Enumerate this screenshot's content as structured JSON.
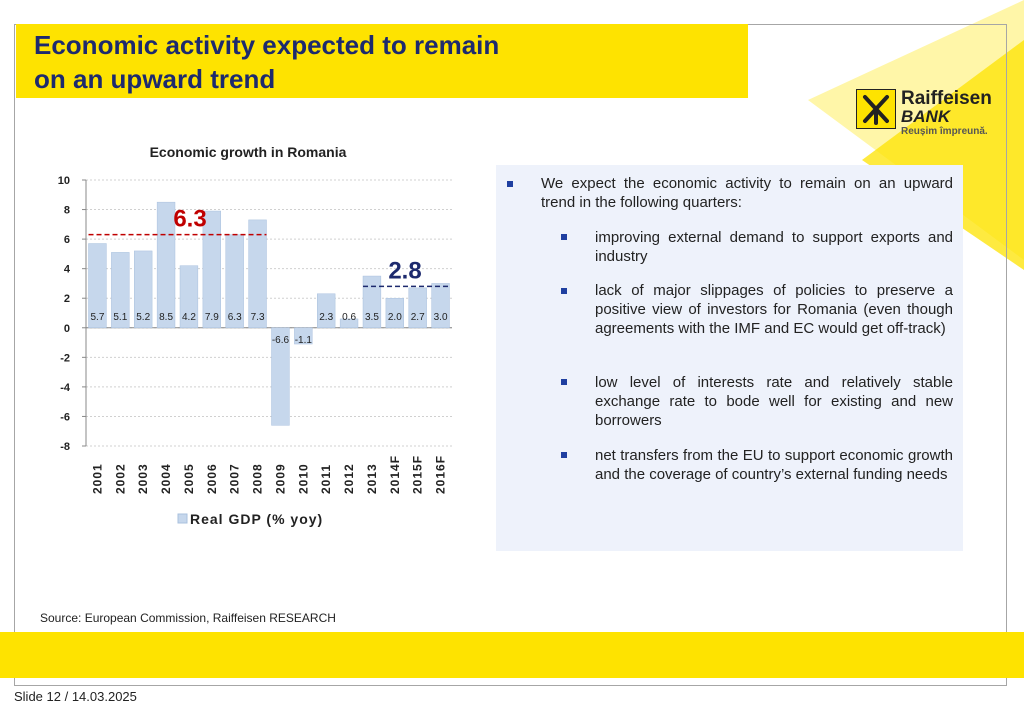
{
  "slide": {
    "title_line1": "Economic activity expected to remain",
    "title_line2": "on an upward trend",
    "source": "Source: European Commission, Raiffeisen RESEARCH",
    "footer": "Slide 12 / 14.03.2025"
  },
  "logo": {
    "name": "Raiffeisen",
    "bank": "BANK",
    "tagline": "Reușim împreună."
  },
  "colors": {
    "yellow": "#fee300",
    "title_blue": "#1d2a6e",
    "bar_fill": "#c6d7ec",
    "bar_stroke": "#a9c0de",
    "highlight_red": "#c00000",
    "highlight_blue": "#1d2a6e",
    "panel_bg": "#eef2fb"
  },
  "chart_data": {
    "type": "bar",
    "title": "Economic growth in Romania",
    "categories": [
      "2001",
      "2002",
      "2003",
      "2004",
      "2005",
      "2006",
      "2007",
      "2008",
      "2009",
      "2010",
      "2011",
      "2012",
      "2013",
      "2014F",
      "2015F",
      "2016F"
    ],
    "series": [
      {
        "name": "Real GDP (% yoy)",
        "values": [
          5.7,
          5.1,
          5.2,
          8.5,
          4.2,
          7.9,
          6.3,
          7.3,
          -6.6,
          -1.1,
          2.3,
          0.6,
          3.5,
          2.0,
          2.7,
          3.0
        ]
      }
    ],
    "data_labels": [
      "5.7",
      "5.1",
      "5.2",
      "8.5",
      "4.2",
      "7.9",
      "6.3",
      "7.3",
      "-6.6",
      "-1.1",
      "2.3",
      "0.6",
      "3.5",
      "2.0",
      "2.7",
      "3.0"
    ],
    "ylim": [
      -8,
      10
    ],
    "yticks": [
      10,
      8,
      6,
      4,
      2,
      0,
      -2,
      -4,
      -6,
      -8
    ],
    "ytick_labels": [
      "10",
      "8",
      "6",
      "4",
      "2",
      "0",
      "-2",
      "-4",
      "-6",
      "-8"
    ],
    "grid": true,
    "legend": "bottom",
    "annotations": [
      {
        "text": "6.3",
        "value": 6.3,
        "from": "2001",
        "to": "2008",
        "color": "red"
      },
      {
        "text": "2.8",
        "value": 2.8,
        "from": "2013",
        "to": "2016F",
        "color": "blue"
      }
    ]
  },
  "bullets": {
    "main": "We expect the economic activity to remain on an upward trend in the following quarters:",
    "items": [
      "improving external demand to support exports and industry",
      "lack of major slippages of policies to preserve a positive view of investors for Romania (even though agreements with the IMF and EC would get off-track)",
      "low level of interests rate and relatively stable exchange rate to bode well for existing and new borrowers",
      "net transfers from the EU to support economic growth and the coverage of country’s external funding needs"
    ]
  }
}
